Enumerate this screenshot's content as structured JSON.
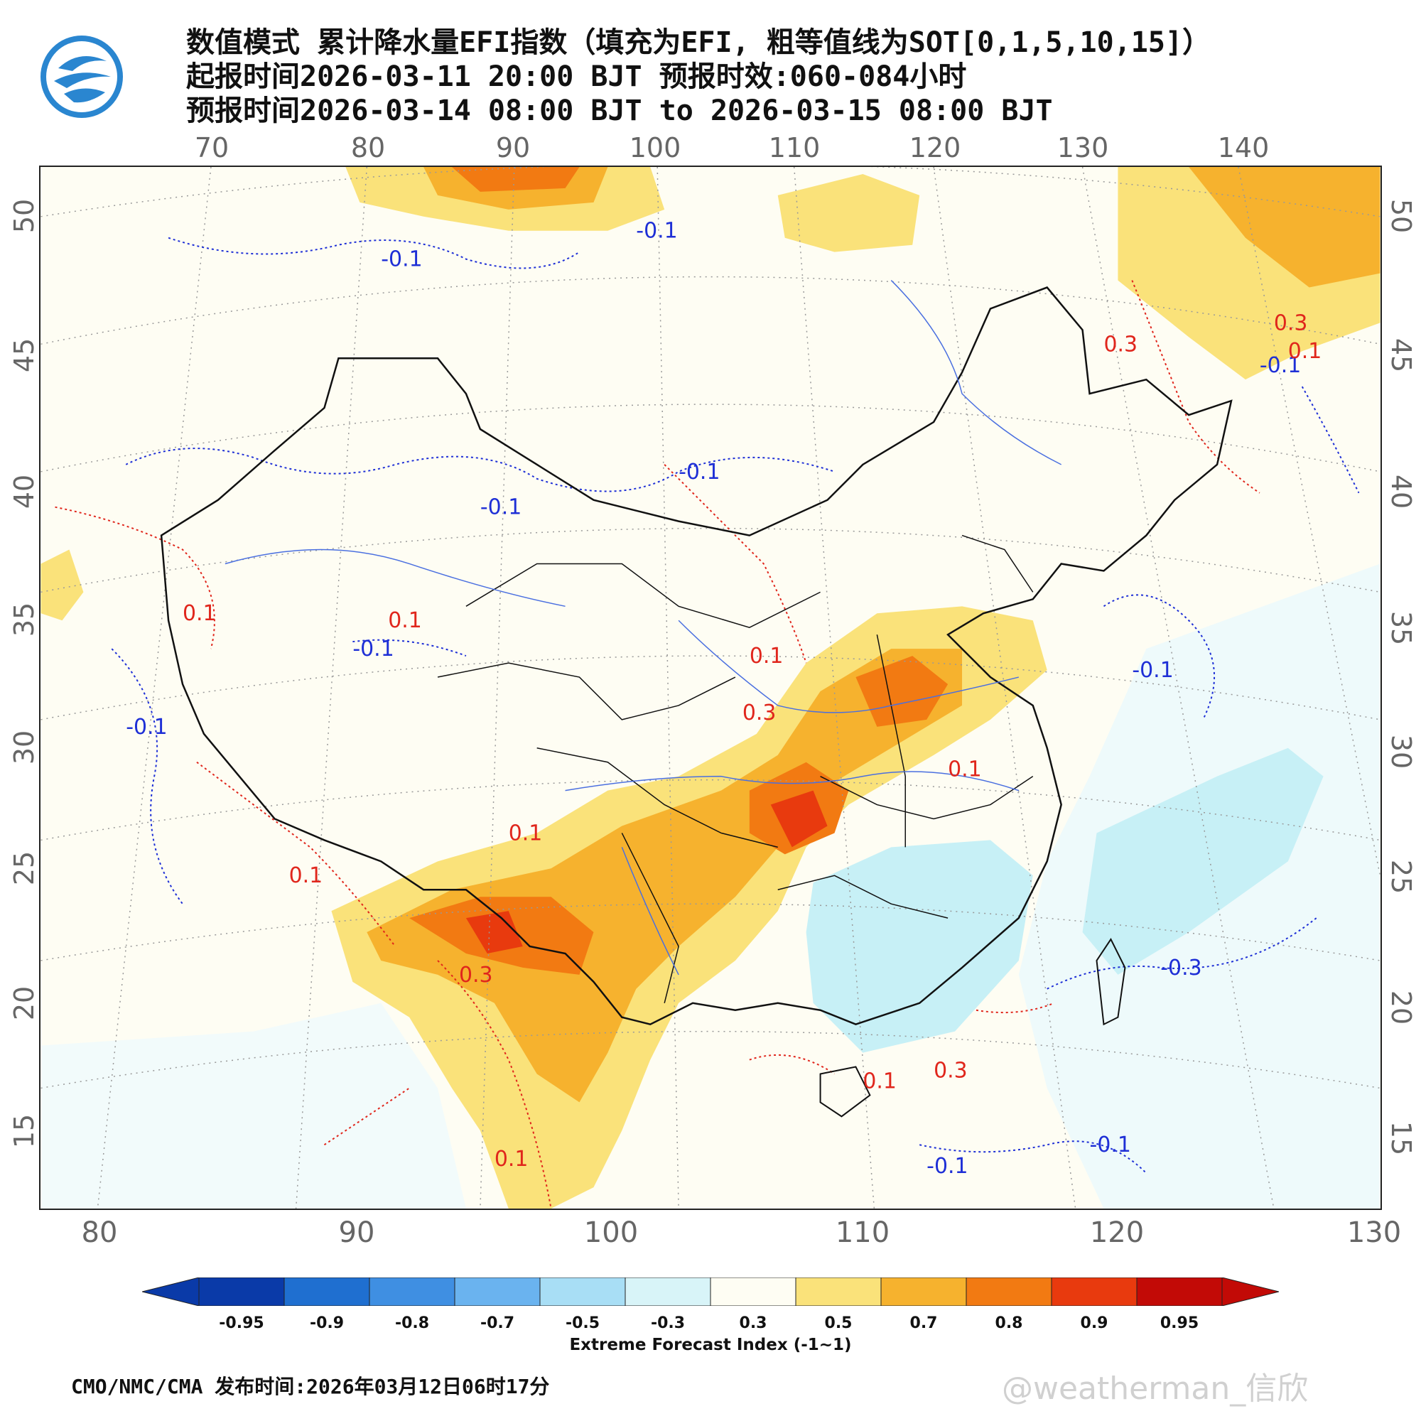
{
  "header": {
    "title_line1": "数值模式 累计降水量EFI指数（填充为EFI, 粗等值线为SOT[0,1,5,10,15]）",
    "title_line2": "起报时间2026-03-11 20:00 BJT 预报时效:060-084小时",
    "title_line3": "预报时间2026-03-14 08:00 BJT to 2026-03-15 08:00 BJT"
  },
  "axes": {
    "lon_top": [
      "70",
      "80",
      "90",
      "100",
      "110",
      "120",
      "130",
      "140"
    ],
    "lon_bottom": [
      "80",
      "90",
      "100",
      "110",
      "120",
      "130"
    ],
    "lat_left": [
      "50",
      "45",
      "40",
      "35",
      "30",
      "25",
      "20",
      "15"
    ],
    "lat_right": [
      "50",
      "45",
      "40",
      "35",
      "30",
      "25",
      "20",
      "15"
    ]
  },
  "contour_labels": [
    {
      "text": "-0.1",
      "color": "blue"
    },
    {
      "text": "-0.1",
      "color": "blue"
    },
    {
      "text": "-0.1",
      "color": "blue"
    },
    {
      "text": "-0.1",
      "color": "blue"
    },
    {
      "text": "-0.1",
      "color": "blue"
    },
    {
      "text": "-0.1",
      "color": "blue"
    },
    {
      "text": "-0.1",
      "color": "blue"
    },
    {
      "text": "-0.1",
      "color": "blue"
    },
    {
      "text": "-0.1",
      "color": "blue"
    },
    {
      "text": "-0.3",
      "color": "blue"
    },
    {
      "text": "-0.1",
      "color": "blue"
    },
    {
      "text": "0.1",
      "color": "red"
    },
    {
      "text": "0.1",
      "color": "red"
    },
    {
      "text": "0.1",
      "color": "red"
    },
    {
      "text": "0.1",
      "color": "red"
    },
    {
      "text": "0.3",
      "color": "red"
    },
    {
      "text": "0.1",
      "color": "red"
    },
    {
      "text": "0.3",
      "color": "red"
    },
    {
      "text": "0.1",
      "color": "red"
    },
    {
      "text": "0.1",
      "color": "red"
    },
    {
      "text": "0.3",
      "color": "red"
    },
    {
      "text": "0.3",
      "color": "red"
    },
    {
      "text": "0.1",
      "color": "red"
    },
    {
      "text": "0.1",
      "color": "red"
    },
    {
      "text": "0.3",
      "color": "red"
    }
  ],
  "colorbar": {
    "labels": [
      "-0.95",
      "-0.9",
      "-0.8",
      "-0.7",
      "-0.5",
      "-0.3",
      "0.3",
      "0.5",
      "0.7",
      "0.8",
      "0.9",
      "0.95"
    ],
    "colors": [
      "#0a3aa8",
      "#1f6fd0",
      "#3f8fe2",
      "#6ab3ef",
      "#a8def5",
      "#d8f4f8",
      "#fefdf3",
      "#fae27a",
      "#f6b22e",
      "#f27a12",
      "#e83a0e",
      "#c20a06"
    ],
    "title": "Extreme Forecast Index (-1~1)"
  },
  "footer": {
    "source": "CMO/NMC/CMA 发布时间:2026年03月12日06时17分",
    "watermark": "@weatherman_信欣"
  }
}
